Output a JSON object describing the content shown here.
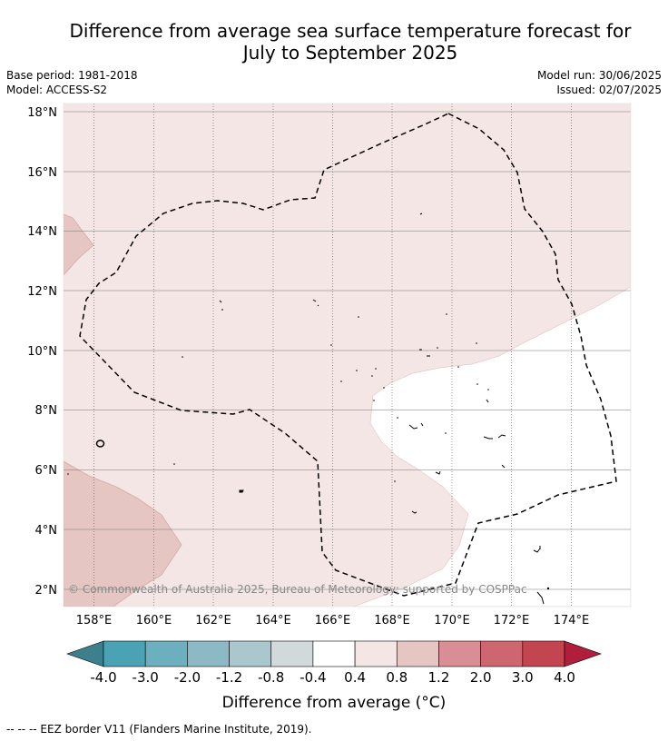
{
  "title_line1": "Difference from average sea surface temperature forecast for",
  "title_line2": "July to September 2025",
  "base_period": "Base period: 1981-2018",
  "model": "Model: ACCESS-S2",
  "model_run": "Model run: 30/06/2025",
  "issued": "Issued: 02/07/2025",
  "copyright": "© Commonwealth of Australia 2025, Bureau of Meteorology; supported by COSPPac",
  "lat_labels": [
    "18°N",
    "16°N",
    "14°N",
    "12°N",
    "10°N",
    "8°N",
    "6°N",
    "4°N",
    "2°N"
  ],
  "lon_labels": [
    "158°E",
    "160°E",
    "162°E",
    "164°E",
    "166°E",
    "168°E",
    "170°E",
    "172°E",
    "174°E"
  ],
  "colorbar": {
    "label": "Difference from average (°C)",
    "ticks": [
      "-4.0",
      "-3.0",
      "-2.0",
      "-1.2",
      "-0.8",
      "-0.4",
      "0.4",
      "0.8",
      "1.2",
      "2.0",
      "3.0",
      "4.0"
    ],
    "colors": [
      "#3d7f8c",
      "#4aa2b5",
      "#6cb0bf",
      "#8db9c4",
      "#a9c7cc",
      "#d2d9db",
      "#ffffff",
      "#f4e6e5",
      "#e6c6c2",
      "#d98e95",
      "#cd6670",
      "#c2454f",
      "#b01e3c"
    ]
  },
  "footer": "--  --  -- EEZ border V11 (Flanders Marine Institute, 2019)."
}
